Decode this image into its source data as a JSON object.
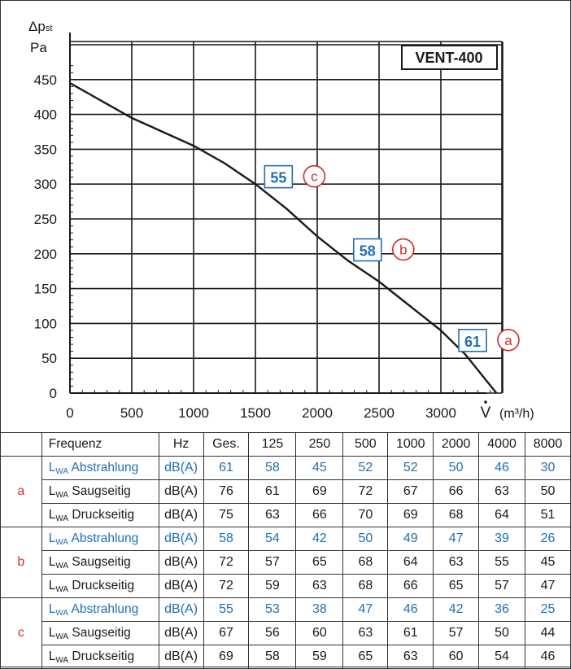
{
  "chart_data": {
    "type": "line",
    "title": "VENT-400",
    "ylabel_symbol": "Δp",
    "ylabel_sub": "st",
    "yunit": "Pa",
    "xlabel_symbol": "V",
    "xunit": "(m³/h)",
    "xlim": [
      0,
      3500
    ],
    "ylim": [
      0,
      450
    ],
    "xticks": [
      "0",
      "500",
      "1000",
      "1500",
      "2000",
      "2500",
      "3000"
    ],
    "yticks": [
      "0",
      "50",
      "100",
      "150",
      "200",
      "250",
      "300",
      "350",
      "400",
      "450"
    ],
    "grid": true,
    "series": [
      {
        "x": [
          0,
          250,
          500,
          750,
          1000,
          1250,
          1500,
          1750,
          2000,
          2250,
          2500,
          2750,
          3000,
          3200,
          3350,
          3450
        ],
        "y": [
          445,
          420,
          395,
          375,
          355,
          330,
          300,
          265,
          225,
          190,
          160,
          125,
          90,
          55,
          22,
          0
        ]
      }
    ],
    "annotations": [
      {
        "value": "55",
        "tag": "c",
        "x": 1680,
        "y": 310
      },
      {
        "value": "58",
        "tag": "b",
        "x": 2400,
        "y": 205
      },
      {
        "value": "61",
        "tag": "a",
        "x": 3250,
        "y": 75
      }
    ],
    "colors": {
      "value_box": "#1f6fb5",
      "tag_circle": "#d42a2a",
      "curve": "#1a1a1a"
    }
  },
  "table": {
    "header": [
      "",
      "Frequenz",
      "Hz",
      "Ges.",
      "125",
      "250",
      "500",
      "1000",
      "2000",
      "4000",
      "8000"
    ],
    "groups": [
      {
        "tag": "a",
        "rows": [
          {
            "prefix": "L",
            "sub": "WA",
            "label": "Abstrahlung",
            "unit": "dB(A)",
            "values": [
              "61",
              "58",
              "45",
              "52",
              "52",
              "50",
              "46",
              "30"
            ],
            "highlight": true
          },
          {
            "prefix": "L",
            "sub": "WA",
            "label": "Saugseitig",
            "unit": "dB(A)",
            "values": [
              "76",
              "61",
              "69",
              "72",
              "67",
              "66",
              "63",
              "50"
            ],
            "highlight": false
          },
          {
            "prefix": "L",
            "sub": "WA",
            "label": "Druckseitig",
            "unit": "dB(A)",
            "values": [
              "75",
              "63",
              "66",
              "70",
              "69",
              "68",
              "64",
              "51"
            ],
            "highlight": false
          }
        ]
      },
      {
        "tag": "b",
        "rows": [
          {
            "prefix": "L",
            "sub": "WA",
            "label": "Abstrahlung",
            "unit": "dB(A)",
            "values": [
              "58",
              "54",
              "42",
              "50",
              "49",
              "47",
              "39",
              "26"
            ],
            "highlight": true
          },
          {
            "prefix": "L",
            "sub": "WA",
            "label": "Saugseitig",
            "unit": "dB(A)",
            "values": [
              "72",
              "57",
              "65",
              "68",
              "64",
              "63",
              "55",
              "45"
            ],
            "highlight": false
          },
          {
            "prefix": "L",
            "sub": "WA",
            "label": "Druckseitig",
            "unit": "dB(A)",
            "values": [
              "72",
              "59",
              "63",
              "68",
              "66",
              "65",
              "57",
              "47"
            ],
            "highlight": false
          }
        ]
      },
      {
        "tag": "c",
        "rows": [
          {
            "prefix": "L",
            "sub": "WA",
            "label": "Abstrahlung",
            "unit": "dB(A)",
            "values": [
              "55",
              "53",
              "38",
              "47",
              "46",
              "42",
              "36",
              "25"
            ],
            "highlight": true
          },
          {
            "prefix": "L",
            "sub": "WA",
            "label": "Saugseitig",
            "unit": "dB(A)",
            "values": [
              "67",
              "56",
              "60",
              "63",
              "61",
              "57",
              "50",
              "44"
            ],
            "highlight": false
          },
          {
            "prefix": "L",
            "sub": "WA",
            "label": "Druckseitig",
            "unit": "dB(A)",
            "values": [
              "69",
              "58",
              "59",
              "65",
              "63",
              "60",
              "54",
              "46"
            ],
            "highlight": false
          }
        ]
      }
    ]
  }
}
